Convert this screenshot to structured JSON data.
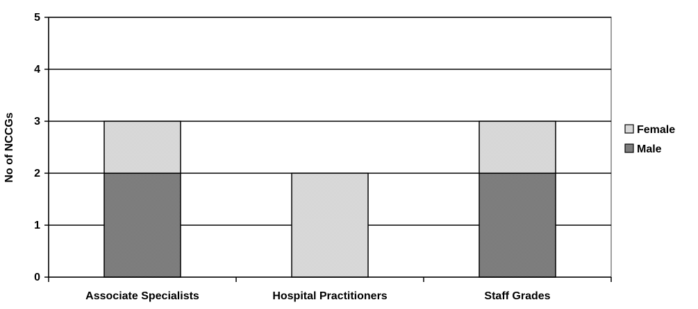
{
  "chart_data": {
    "type": "bar",
    "stacked": true,
    "categories": [
      "Associate Specialists",
      "Hospital Practitioners",
      "Staff Grades"
    ],
    "series": [
      {
        "name": "Male",
        "values": [
          2,
          0,
          2
        ],
        "color": "#8c8c8c"
      },
      {
        "name": "Female",
        "values": [
          1,
          2,
          1
        ],
        "color": "#e0e0e0"
      }
    ],
    "title": "",
    "xlabel": "",
    "ylabel": "No of NCCGs",
    "ylim": [
      0,
      5
    ],
    "yticks": [
      0,
      1,
      2,
      3,
      4,
      5
    ],
    "grid": true,
    "legend_position": "right",
    "legend_order": [
      "Female",
      "Male"
    ],
    "colors": {
      "axis": "#000000",
      "gridline": "#000000",
      "plot_border": "#808080",
      "bar_outline": "#000000"
    }
  }
}
